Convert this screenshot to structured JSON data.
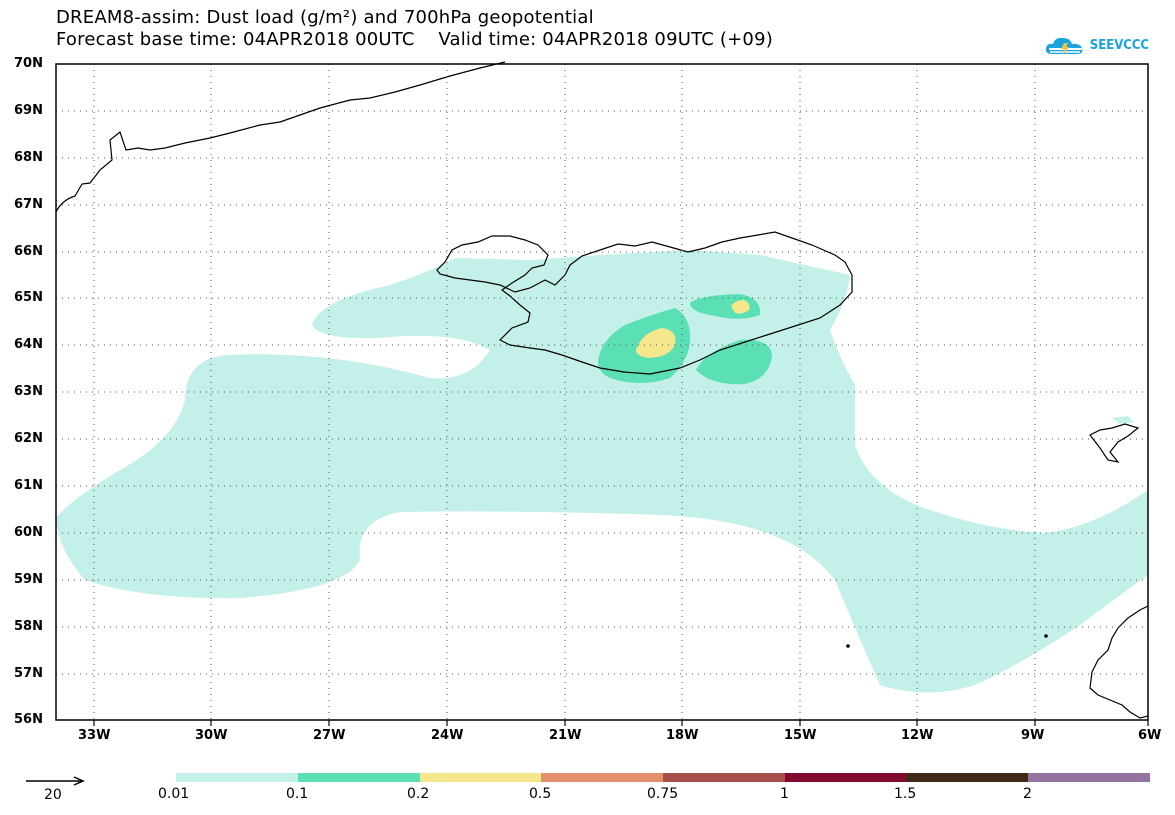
{
  "header": {
    "title_line1": "DREAM8-assim: Dust load (g/m²) and 700hPa geopotential",
    "title_line2": "Forecast base time: 04APR2018 00UTC    Valid time: 04APR2018 09UTC (+09)"
  },
  "logo": {
    "text": "SEEVCCC",
    "icon": "cloud-icon",
    "color": "#1aa3e0"
  },
  "map": {
    "lat_labels": [
      "70N",
      "69N",
      "68N",
      "67N",
      "66N",
      "65N",
      "64N",
      "63N",
      "62N",
      "61N",
      "60N",
      "59N",
      "58N",
      "57N",
      "56N"
    ],
    "lon_labels": [
      "33W",
      "30W",
      "27W",
      "24W",
      "21W",
      "18W",
      "15W",
      "12W",
      "9W",
      "6W"
    ],
    "gridlines": "dotted",
    "coastlines": [
      "Greenland",
      "Iceland",
      "Faroe Islands",
      "Scotland"
    ]
  },
  "colorbar": {
    "labels": [
      "0.01",
      "0.1",
      "0.2",
      "0.5",
      "0.75",
      "1",
      "1.5",
      "2"
    ],
    "colors": [
      "#c3f0e8",
      "#5bdfb4",
      "#f5e78c",
      "#e4906c",
      "#a5504a",
      "#820a2e",
      "#3e2a16",
      "#9473a1"
    ]
  },
  "wind_arrow": {
    "label": "20"
  }
}
